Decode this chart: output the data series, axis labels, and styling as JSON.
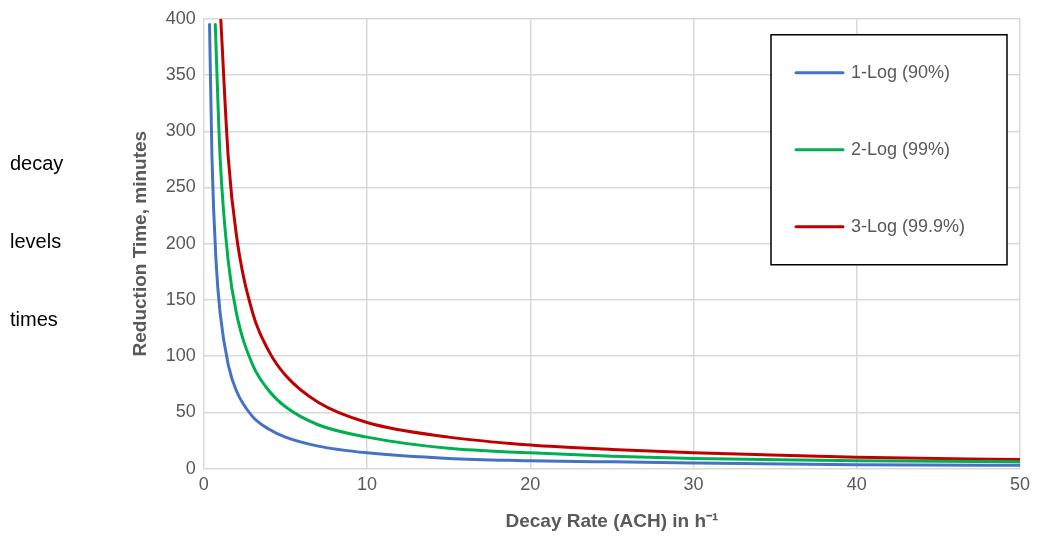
{
  "chart_data": {
    "type": "line",
    "xlabel": "Decay Rate (ACH) in h⁻¹",
    "ylabel": "Reduction Time, minutes",
    "annotations": [
      "decay",
      "levels",
      "times"
    ],
    "xlim": [
      0,
      50
    ],
    "xticks": [
      0,
      10,
      20,
      30,
      40,
      50
    ],
    "ylim": [
      0,
      400
    ],
    "yticks": [
      0,
      50,
      100,
      150,
      200,
      250,
      300,
      350,
      400
    ],
    "grid": true,
    "legend": "top right",
    "marker": "none",
    "line_style": "solid",
    "series": [
      {
        "name": "1-Log (90%)",
        "color": "#4472c4",
        "x": [
          0.35,
          0.5,
          0.75,
          1,
          1.5,
          2,
          3,
          4,
          5,
          7,
          10,
          15,
          20,
          25,
          30,
          40,
          50
        ],
        "values": [
          395,
          276,
          184,
          138,
          92,
          69,
          46,
          35,
          28,
          20,
          14,
          9,
          7,
          6,
          5,
          3.5,
          3
        ]
      },
      {
        "name": "2-Log (99%)",
        "color": "#00b050",
        "x": [
          0.7,
          1,
          1.5,
          2,
          3,
          4,
          5,
          7,
          10,
          15,
          20,
          25,
          30,
          40,
          50
        ],
        "values": [
          395,
          276,
          184,
          138,
          92,
          69,
          55,
          39,
          28,
          18,
          14,
          11,
          9,
          7,
          6
        ]
      },
      {
        "name": "3-Log (99.9%)",
        "color": "#c00000",
        "x": [
          1.04,
          1.5,
          2,
          3,
          4,
          5,
          7,
          10,
          15,
          20,
          25,
          30,
          40,
          50
        ],
        "values": [
          399,
          276,
          207,
          138,
          104,
          83,
          59,
          41,
          28,
          21,
          17,
          14,
          10,
          8
        ]
      }
    ]
  }
}
